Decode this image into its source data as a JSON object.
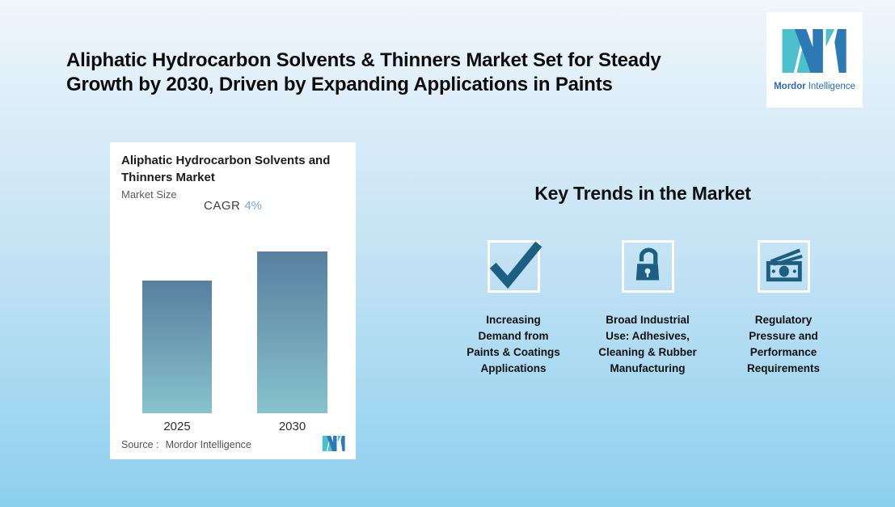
{
  "header": {
    "title_lines": [
      "Aliphatic Hydrocarbon Solvents & Thinners Market Set for Steady",
      "Growth by 2030, Driven by Expanding Applications in Paints"
    ]
  },
  "brand": {
    "name_bold": "Mordor",
    "name_light": "Intelligence"
  },
  "chart_card": {
    "title_lines": [
      "Aliphatic Hydrocarbon Solvents and",
      "Thinners Market"
    ],
    "subtitle": "Market Size",
    "cagr_label": "CAGR",
    "cagr_value": "4%",
    "source_label": "Source :",
    "source_value": "Mordor Intelligence"
  },
  "chart_data": {
    "type": "bar",
    "title": "Aliphatic Hydrocarbon Solvents and Thinners Market",
    "subtitle": "Market Size",
    "categories": [
      "2025",
      "2030"
    ],
    "values": [
      100,
      122
    ],
    "values_note": "relative market-size index; no numeric axis shown, 2030 bar ~22% taller per 4% CAGR over 5 years",
    "cagr": "4%",
    "xlabel": "",
    "ylabel": "",
    "grid": false,
    "legend": false,
    "bar_gradient_top": "#58809f",
    "bar_gradient_bottom": "#87c3cc"
  },
  "trends": {
    "heading": "Key Trends in the Market",
    "items": [
      {
        "icon": "check-icon",
        "lines": [
          "Increasing",
          "Demand from",
          "Paints & Coatings",
          "Applications"
        ]
      },
      {
        "icon": "unlock-icon",
        "lines": [
          "Broad Industrial",
          "Use: Adhesives,",
          "Cleaning & Rubber",
          "Manufacturing"
        ]
      },
      {
        "icon": "money-icon",
        "lines": [
          "Regulatory",
          "Pressure and",
          "Performance",
          "Requirements"
        ]
      }
    ]
  },
  "colors": {
    "background_top": "#f0f6fc",
    "background_bottom": "#8dd0ef",
    "icon_teal": "#1d5f80",
    "cagr_accent": "#7aa9cd",
    "logo_teal": "#4ec0cb",
    "logo_blue": "#2d79b4",
    "card_background": "#ffffff"
  }
}
